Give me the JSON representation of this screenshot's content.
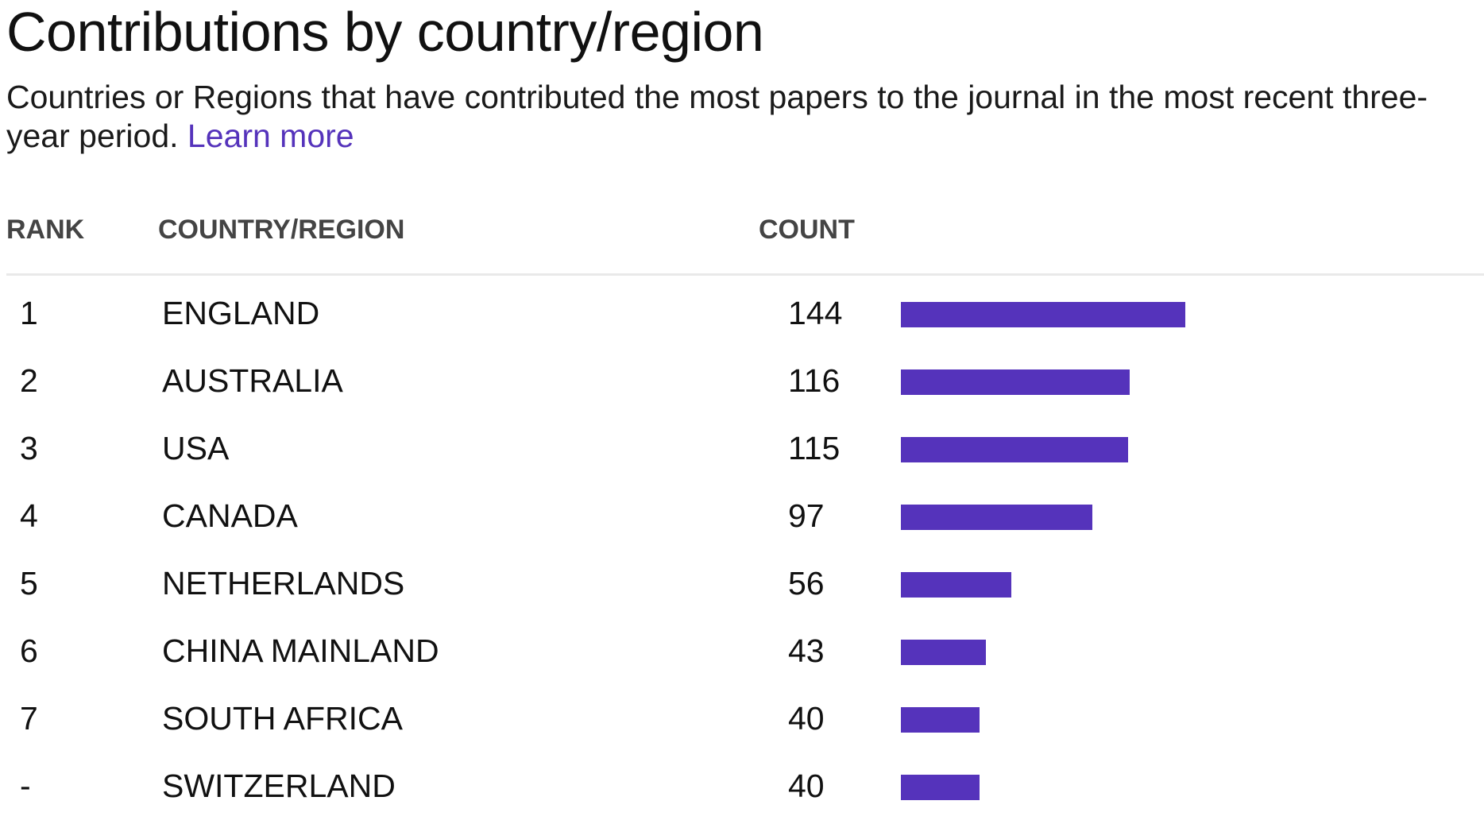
{
  "title": "Contributions by country/region",
  "description": {
    "text": "Countries or Regions that have contributed the most papers to the journal in the most recent three-year period.",
    "link_label": "Learn more"
  },
  "table": {
    "headers": {
      "rank": "RANK",
      "country": "COUNTRY/REGION",
      "count": "COUNT"
    },
    "rows": [
      {
        "rank": "1",
        "country": "ENGLAND",
        "count": "144",
        "value": 144
      },
      {
        "rank": "2",
        "country": "AUSTRALIA",
        "count": "116",
        "value": 116
      },
      {
        "rank": "3",
        "country": "USA",
        "count": "115",
        "value": 115
      },
      {
        "rank": "4",
        "country": "CANADA",
        "count": "97",
        "value": 97
      },
      {
        "rank": "5",
        "country": "NETHERLANDS",
        "count": "56",
        "value": 56
      },
      {
        "rank": "6",
        "country": "CHINA MAINLAND",
        "count": "43",
        "value": 43
      },
      {
        "rank": "7",
        "country": "SOUTH AFRICA",
        "count": "40",
        "value": 40
      },
      {
        "rank": "-",
        "country": "SWITZERLAND",
        "count": "40",
        "value": 40
      }
    ]
  },
  "colors": {
    "bar": "#5533bb",
    "link": "#5533bb",
    "header_text": "#444444",
    "divider": "#e9e9e9"
  }
}
